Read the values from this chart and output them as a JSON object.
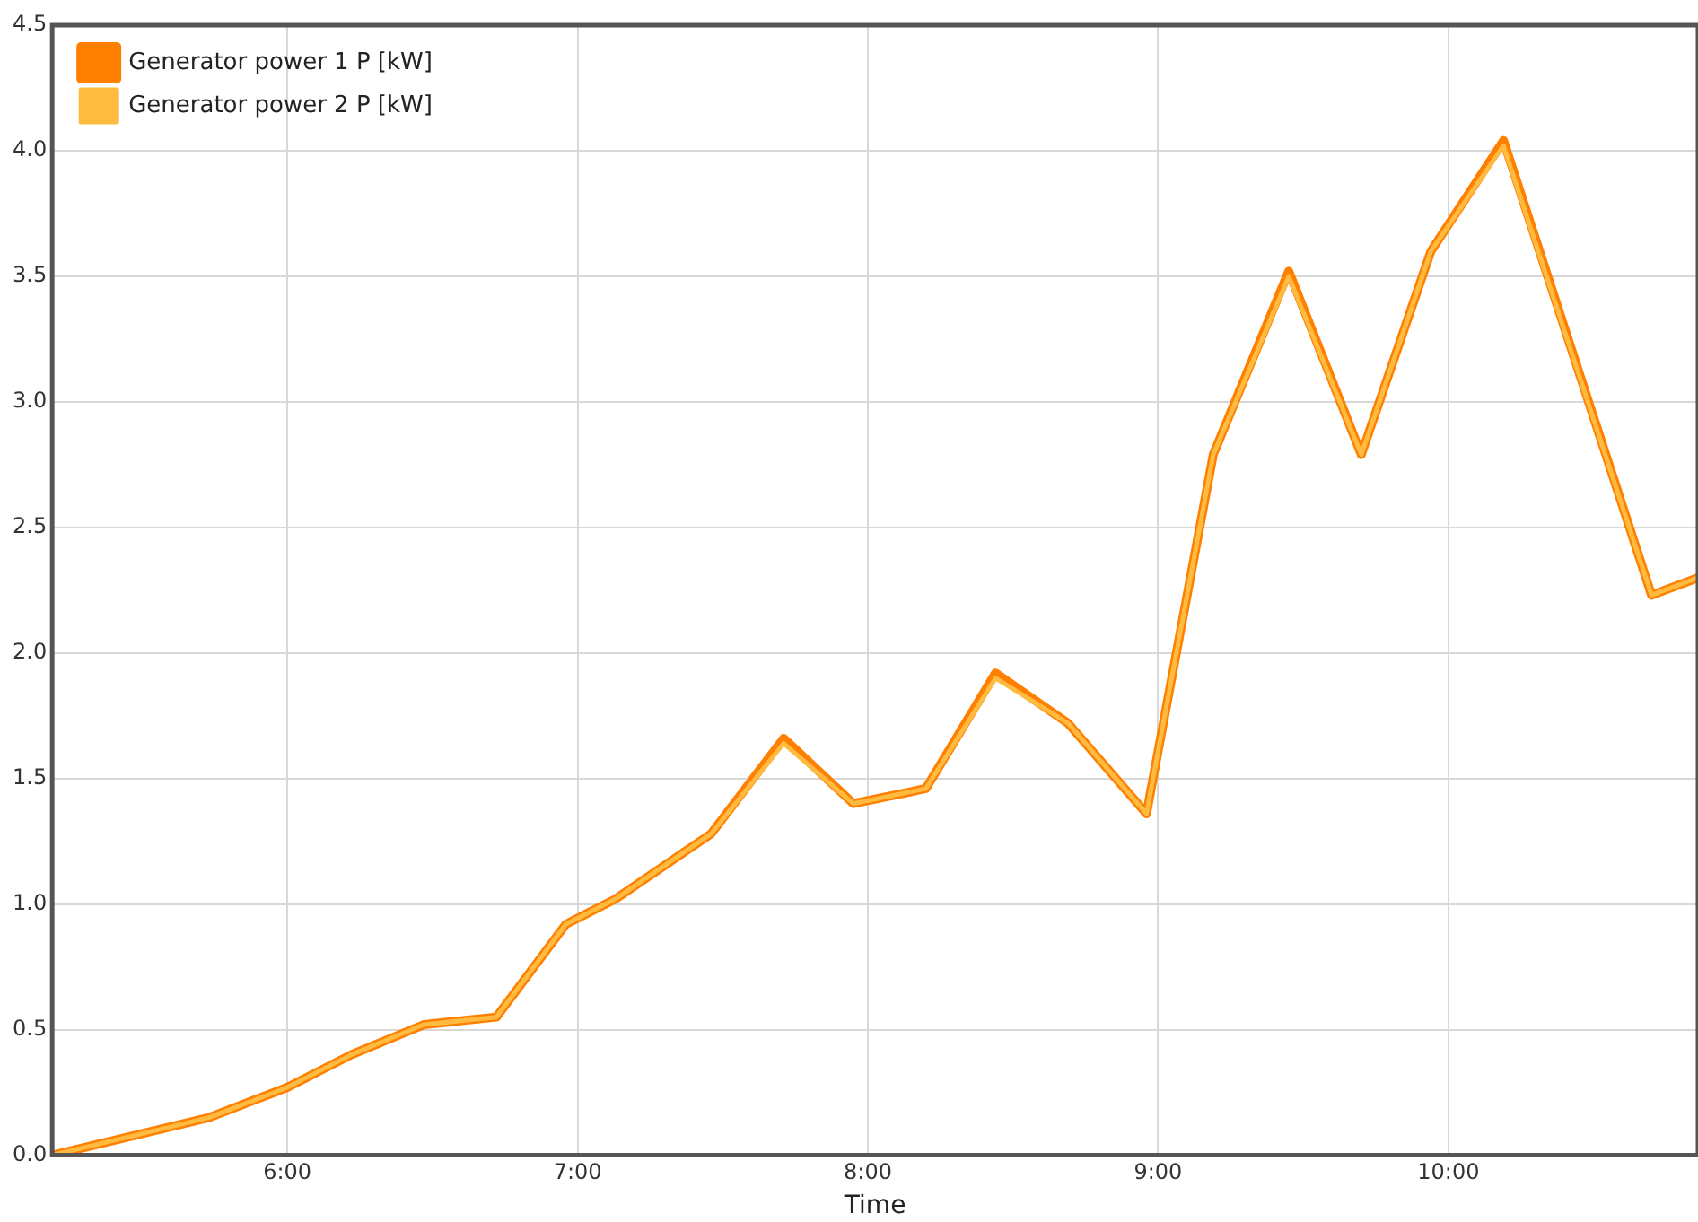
{
  "chart_data": {
    "type": "line",
    "xlabel": "Time",
    "xlim": [
      5.19,
      10.86
    ],
    "xticks": [
      {
        "value": 6,
        "label": "6:00"
      },
      {
        "value": 7,
        "label": "7:00"
      },
      {
        "value": 8,
        "label": "8:00"
      },
      {
        "value": 9,
        "label": "9:00"
      },
      {
        "value": 10,
        "label": "10:00"
      }
    ],
    "ylim": [
      0,
      4.5
    ],
    "yticks": [
      {
        "value": 0,
        "label": "0.0"
      },
      {
        "value": 0.5,
        "label": "0.5"
      },
      {
        "value": 1,
        "label": "1.0"
      },
      {
        "value": 1.5,
        "label": "1.5"
      },
      {
        "value": 2,
        "label": "2.0"
      },
      {
        "value": 2.5,
        "label": "2.5"
      },
      {
        "value": 3,
        "label": "3.0"
      },
      {
        "value": 3.5,
        "label": "3.5"
      },
      {
        "value": 4,
        "label": "4.0"
      },
      {
        "value": 4.5,
        "label": "4.5"
      }
    ],
    "x": [
      5.19,
      5.73,
      6.0,
      6.22,
      6.47,
      6.72,
      6.96,
      7.13,
      7.46,
      7.71,
      7.95,
      8.2,
      8.44,
      8.69,
      8.96,
      9.19,
      9.45,
      9.7,
      9.94,
      10.19,
      10.7,
      10.86
    ],
    "series": [
      {
        "name": "Generator power 1 P [kW]",
        "color": "#ff7f00",
        "values": [
          0,
          0.15,
          0.27,
          0.4,
          0.52,
          0.55,
          0.92,
          1.02,
          1.28,
          1.66,
          1.4,
          1.46,
          1.92,
          1.72,
          1.36,
          2.79,
          3.52,
          2.79,
          3.6,
          4.04,
          2.23,
          2.3
        ]
      },
      {
        "name": "Generator power 2 P [kW]",
        "color": "#ffbb40",
        "values": [
          0,
          0.15,
          0.27,
          0.4,
          0.52,
          0.55,
          0.92,
          1.02,
          1.28,
          1.64,
          1.4,
          1.46,
          1.9,
          1.72,
          1.36,
          2.79,
          3.5,
          2.79,
          3.6,
          4.02,
          2.23,
          2.3
        ]
      }
    ],
    "grid": true,
    "legend": "top left",
    "marker": "none",
    "line_style": "solid"
  }
}
